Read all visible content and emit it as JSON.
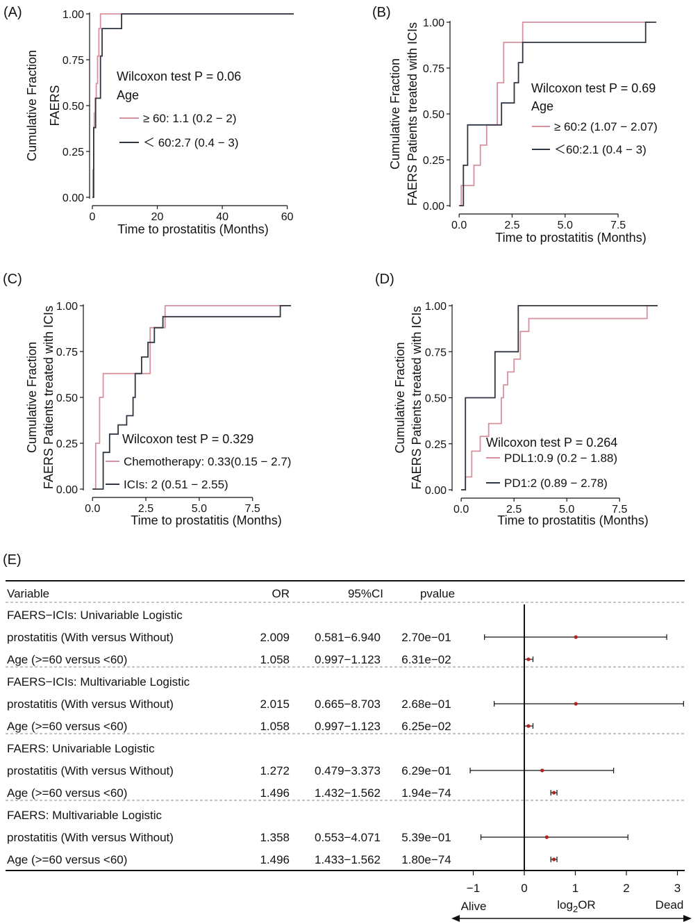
{
  "colors": {
    "pink": "#d8919c",
    "dark": "#2f3540",
    "point": "#b22222",
    "axis": "#111111",
    "dash": "#888888"
  },
  "chart_data": [
    {
      "type": "line",
      "panel_label": "(A)",
      "ylabel": [
        "Cumulative Fraction",
        "FAERS"
      ],
      "xlabel": "Time to prostatitis (Months)",
      "xlim": [
        0,
        62
      ],
      "ylim": [
        0,
        1
      ],
      "xticks": [
        0,
        20,
        40,
        60
      ],
      "xtick_labels": [
        "0",
        "20",
        "40",
        "60"
      ],
      "yticks": [
        0,
        0.25,
        0.5,
        0.75,
        1
      ],
      "ytick_labels": [
        "0.00",
        "0.25",
        "0.50",
        "0.75",
        "1.00"
      ],
      "annotation": [
        "Wilcoxon test P = 0.06",
        "Age"
      ],
      "series": [
        {
          "name": "≥ 60: 1.1 (0.2 − 2)",
          "color_key": "pink",
          "x": [
            0,
            0.2,
            0.4,
            0.6,
            0.9,
            1.2,
            1.6,
            2.0,
            2.5,
            3,
            62
          ],
          "y": [
            0,
            0.15,
            0.38,
            0.46,
            0.54,
            0.62,
            0.77,
            0.92,
            1.0,
            1.0,
            1.0
          ]
        },
        {
          "name": "＜ 60:2.7 (0.4 − 3)",
          "color_key": "dark",
          "x": [
            0,
            0.4,
            1.0,
            2.5,
            3.0,
            4.0,
            9.0,
            62
          ],
          "y": [
            0,
            0.38,
            0.54,
            0.77,
            0.92,
            0.92,
            1.0,
            1.0
          ]
        }
      ]
    },
    {
      "type": "line",
      "panel_label": "(B)",
      "ylabel": [
        "Cumulative Fraction",
        "FAERS Patients treated with ICIs"
      ],
      "xlabel": "Time to prostatitis (Months)",
      "xlim": [
        -0.3,
        9.3
      ],
      "ylim": [
        0,
        1
      ],
      "xticks": [
        0,
        2.5,
        5,
        7.5
      ],
      "xtick_labels": [
        "0.0",
        "2.5",
        "5.0",
        "7.5"
      ],
      "yticks": [
        0,
        0.25,
        0.5,
        0.75,
        1
      ],
      "ytick_labels": [
        "0.00",
        "0.25",
        "0.50",
        "0.75",
        "1.00"
      ],
      "annotation": [
        "Wilcoxon test P = 0.69",
        "Age"
      ],
      "series": [
        {
          "name": "≥ 60:2 (1.07 − 2.07)",
          "color_key": "pink",
          "x": [
            0,
            0.1,
            0.7,
            1.0,
            1.3,
            1.8,
            2.1,
            3.0,
            9.0
          ],
          "y": [
            0,
            0.11,
            0.22,
            0.33,
            0.44,
            0.67,
            0.89,
            1.0,
            1.0
          ]
        },
        {
          "name": "＜60:2.1 (0.4 − 3)",
          "color_key": "dark",
          "x": [
            0,
            0.2,
            0.4,
            1.9,
            2.0,
            2.6,
            2.8,
            3.0,
            8.8,
            9.3
          ],
          "y": [
            0,
            0.22,
            0.44,
            0.44,
            0.56,
            0.67,
            0.78,
            0.89,
            1.0,
            1.0
          ]
        }
      ]
    },
    {
      "type": "line",
      "panel_label": "(C)",
      "ylabel": [
        "Cumulative Fraction",
        "FAERS Patients treated with ICIs"
      ],
      "xlabel": "Time to prostatitis (Months)",
      "xlim": [
        -0.3,
        9.3
      ],
      "ylim": [
        0,
        1
      ],
      "xticks": [
        0,
        2.5,
        5,
        7.5
      ],
      "xtick_labels": [
        "0.0",
        "2.5",
        "5.0",
        "7.5"
      ],
      "yticks": [
        0,
        0.25,
        0.5,
        0.75,
        1
      ],
      "ytick_labels": [
        "0.00",
        "0.25",
        "0.50",
        "0.75",
        "1.00"
      ],
      "annotation": [
        "Wilcoxon test P = 0.329"
      ],
      "series": [
        {
          "name": "Chemotherapy: 0.33(0.15 − 2.7)",
          "color_key": "pink",
          "x": [
            0,
            0.15,
            0.33,
            0.5,
            2.7,
            3.4,
            9.3
          ],
          "y": [
            0,
            0.25,
            0.5,
            0.63,
            0.88,
            1.0,
            1.0
          ]
        },
        {
          "name": "ICIs: 2 (0.51 − 2.55)",
          "color_key": "dark",
          "x": [
            0,
            0.5,
            0.8,
            1.2,
            1.6,
            1.9,
            2.0,
            2.3,
            2.6,
            2.9,
            3.3,
            8.8,
            9.3
          ],
          "y": [
            0,
            0.2,
            0.3,
            0.35,
            0.4,
            0.5,
            0.63,
            0.72,
            0.8,
            0.88,
            0.94,
            1.0,
            1.0
          ]
        }
      ]
    },
    {
      "type": "line",
      "panel_label": "(D)",
      "ylabel": [
        "Cumulative Fraction",
        "FAERS Patients treated with ICIs"
      ],
      "xlabel": "Time to prostatitis (Months)",
      "xlim": [
        -0.3,
        9.3
      ],
      "ylim": [
        0,
        1
      ],
      "xticks": [
        0,
        2.5,
        5,
        7.5
      ],
      "xtick_labels": [
        "0.0",
        "2.5",
        "5.0",
        "7.5"
      ],
      "yticks": [
        0,
        0.25,
        0.5,
        0.75,
        1
      ],
      "ytick_labels": [
        "0.00",
        "0.25",
        "0.50",
        "0.75",
        "1.00"
      ],
      "annotation": [
        "Wilcoxon test P = 0.264"
      ],
      "series": [
        {
          "name": "PDL1:0.9 (0.2 − 1.88)",
          "color_key": "pink",
          "x": [
            0,
            0.2,
            0.5,
            0.9,
            1.3,
            1.9,
            2.0,
            2.2,
            2.5,
            2.8,
            3.2,
            8.8,
            9.3
          ],
          "y": [
            0,
            0.07,
            0.21,
            0.29,
            0.36,
            0.5,
            0.57,
            0.64,
            0.71,
            0.86,
            0.93,
            1.0,
            1.0
          ]
        },
        {
          "name": "PD1:2 (0.89 − 2.78)",
          "color_key": "dark",
          "x": [
            0,
            0.2,
            1.6,
            2.7,
            9.3
          ],
          "y": [
            0,
            0.5,
            0.75,
            1.0,
            1.0
          ]
        }
      ]
    },
    {
      "type": "forest",
      "panel_label": "(E)",
      "headers": [
        "Variable",
        "OR",
        "95%CI",
        "pvalue"
      ],
      "xlabel": "log2OR",
      "xlim": [
        -1,
        3
      ],
      "xticks": [
        -1,
        0,
        1,
        2,
        3
      ],
      "xtick_labels": [
        "−1",
        "0",
        "1",
        "2",
        "3"
      ],
      "left_label": "Alive",
      "right_label": "Dead",
      "groups": [
        {
          "title": "FAERS−ICIs:  Univariable Logistic",
          "rows": [
            {
              "variable": "prostatitis (With versus Without)",
              "or": "2.009",
              "ci": "0.581−6.940",
              "p": "2.70e−01",
              "log2or": 1.01,
              "lo": -0.78,
              "hi": 2.79
            },
            {
              "variable": "Age (>=60 versus <60)",
              "or": "1.058",
              "ci": "0.997−1.123",
              "p": "6.31e−02",
              "log2or": 0.08,
              "lo": -0.004,
              "hi": 0.17
            }
          ]
        },
        {
          "title": "FAERS−ICIs:  Multivariable Logistic",
          "rows": [
            {
              "variable": "prostatitis (With versus Without)",
              "or": "2.015",
              "ci": "0.665−8.703",
              "p": "2.68e−01",
              "log2or": 1.01,
              "lo": -0.59,
              "hi": 3.12
            },
            {
              "variable": "Age (>=60 versus <60)",
              "or": "1.058",
              "ci": "0.997−1.123",
              "p": "6.25e−02",
              "log2or": 0.08,
              "lo": -0.004,
              "hi": 0.17
            }
          ]
        },
        {
          "title": "FAERS:  Univariable Logistic",
          "rows": [
            {
              "variable": "prostatitis (With versus Without)",
              "or": "1.272",
              "ci": "0.479−3.373",
              "p": "6.29e−01",
              "log2or": 0.35,
              "lo": -1.06,
              "hi": 1.75
            },
            {
              "variable": "Age (>=60 versus <60)",
              "or": "1.496",
              "ci": "1.432−1.562",
              "p": "1.94e−74",
              "log2or": 0.58,
              "lo": 0.52,
              "hi": 0.64
            }
          ]
        },
        {
          "title": "FAERS:  Multivariable Logistic",
          "rows": [
            {
              "variable": "prostatitis (With versus Without)",
              "or": "1.358",
              "ci": "0.553−4.071",
              "p": "5.39e−01",
              "log2or": 0.44,
              "lo": -0.85,
              "hi": 2.03
            },
            {
              "variable": "Age (>=60 versus <60)",
              "or": "1.496",
              "ci": "1.433−1.562",
              "p": "1.80e−74",
              "log2or": 0.58,
              "lo": 0.52,
              "hi": 0.64
            }
          ]
        }
      ]
    }
  ]
}
